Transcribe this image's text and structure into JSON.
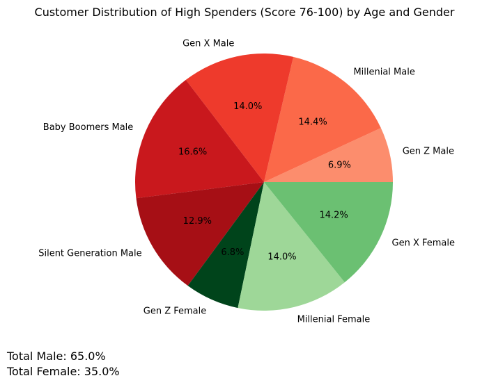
{
  "chart_data": {
    "type": "pie",
    "title": "Customer Distribution of High Spenders (Score 76-100) by Age and Gender",
    "slices": [
      {
        "label": "Gen Z Male",
        "value": 6.9,
        "pct_label": "6.9%",
        "color": "#fc8d6d"
      },
      {
        "label": "Millenial Male",
        "value": 14.4,
        "pct_label": "14.4%",
        "color": "#fb6949"
      },
      {
        "label": "Gen X Male",
        "value": 14.0,
        "pct_label": "14.0%",
        "color": "#ee3a2c"
      },
      {
        "label": "Baby Boomers Male",
        "value": 16.6,
        "pct_label": "16.6%",
        "color": "#c9181d"
      },
      {
        "label": "Silent Generation Male",
        "value": 12.9,
        "pct_label": "12.9%",
        "color": "#a60f15"
      },
      {
        "label": "Gen Z Female",
        "value": 6.8,
        "pct_label": "6.8%",
        "color": "#00441b"
      },
      {
        "label": "Millenial Female",
        "value": 14.0,
        "pct_label": "14.0%",
        "color": "#9ed798"
      },
      {
        "label": "Gen X Female",
        "value": 14.2,
        "pct_label": "14.2%",
        "color": "#6bc072"
      }
    ],
    "start_angle_deg": 0,
    "direction": "counterclockwise"
  },
  "totals": {
    "male": "Total Male: 65.0%",
    "female": "Total Female: 35.0%"
  }
}
